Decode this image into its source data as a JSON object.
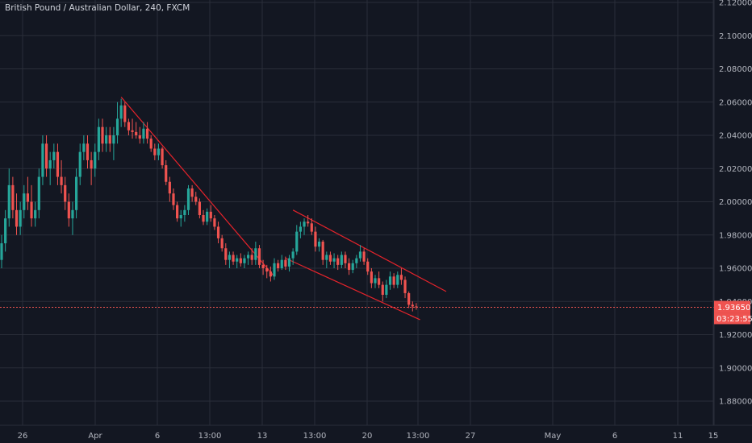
{
  "header": {
    "title": "British Pound / Australian Dollar, 240, FXCM"
  },
  "colors": {
    "background": "#131722",
    "grid": "#2a2e39",
    "up": "#26a69a",
    "down": "#ef5350",
    "trendline": "#e5232b",
    "text": "#b2b5be"
  },
  "chart_data": {
    "type": "candlestick",
    "title": "British Pound / Australian Dollar, 240, FXCM",
    "yaxis": {
      "ticks": [
        "1.88000",
        "1.90000",
        "1.92000",
        "1.94000",
        "1.96000",
        "1.98000",
        "2.00000",
        "2.02000",
        "2.04000",
        "2.06000",
        "2.08000",
        "2.10000",
        "2.12000"
      ],
      "ylim": [
        1.87,
        2.12
      ]
    },
    "xaxis": {
      "ticks": [
        "26",
        "Apr",
        "6",
        "13:00",
        "13",
        "13:00",
        "20",
        "13:00",
        "27",
        "May",
        "6",
        "11",
        "15"
      ]
    },
    "current_price": {
      "value": "1.93650",
      "countdown": "03:23:55",
      "y": 1.9365
    },
    "candles": [
      [
        1.965,
        1.98,
        1.96,
        1.975
      ],
      [
        1.975,
        1.995,
        1.97,
        1.99
      ],
      [
        1.99,
        2.02,
        1.985,
        2.01
      ],
      [
        2.01,
        2.015,
        1.99,
        1.995
      ],
      [
        1.995,
        2.005,
        1.98,
        1.985
      ],
      [
        1.985,
        2.0,
        1.98,
        1.995
      ],
      [
        1.995,
        2.01,
        1.99,
        2.005
      ],
      [
        2.005,
        2.015,
        1.995,
        2.0
      ],
      [
        2.0,
        2.01,
        1.985,
        1.99
      ],
      [
        1.99,
        2.0,
        1.985,
        1.995
      ],
      [
        1.995,
        2.02,
        1.99,
        2.015
      ],
      [
        2.015,
        2.04,
        2.01,
        2.035
      ],
      [
        2.035,
        2.04,
        2.015,
        2.02
      ],
      [
        2.02,
        2.03,
        2.01,
        2.025
      ],
      [
        2.025,
        2.035,
        2.02,
        2.03
      ],
      [
        2.03,
        2.035,
        2.01,
        2.015
      ],
      [
        2.015,
        2.025,
        2.005,
        2.01
      ],
      [
        2.01,
        2.015,
        1.995,
        2.0
      ],
      [
        2.0,
        2.005,
        1.985,
        1.99
      ],
      [
        1.99,
        2.0,
        1.98,
        1.995
      ],
      [
        1.995,
        2.02,
        1.99,
        2.015
      ],
      [
        2.015,
        2.035,
        2.01,
        2.03
      ],
      [
        2.03,
        2.04,
        2.025,
        2.035
      ],
      [
        2.035,
        2.04,
        2.02,
        2.025
      ],
      [
        2.025,
        2.03,
        2.01,
        2.02
      ],
      [
        2.02,
        2.035,
        2.015,
        2.03
      ],
      [
        2.03,
        2.05,
        2.025,
        2.045
      ],
      [
        2.045,
        2.05,
        2.03,
        2.035
      ],
      [
        2.035,
        2.045,
        2.03,
        2.04
      ],
      [
        2.04,
        2.045,
        2.03,
        2.035
      ],
      [
        2.035,
        2.045,
        2.025,
        2.04
      ],
      [
        2.04,
        2.06,
        2.035,
        2.05
      ],
      [
        2.05,
        2.062,
        2.045,
        2.058
      ],
      [
        2.058,
        2.06,
        2.045,
        2.048
      ],
      [
        2.048,
        2.05,
        2.04,
        2.043
      ],
      [
        2.043,
        2.05,
        2.038,
        2.042
      ],
      [
        2.042,
        2.048,
        2.038,
        2.04
      ],
      [
        2.04,
        2.045,
        2.035,
        2.038
      ],
      [
        2.038,
        2.048,
        2.035,
        2.044
      ],
      [
        2.044,
        2.048,
        2.035,
        2.038
      ],
      [
        2.038,
        2.04,
        2.03,
        2.032
      ],
      [
        2.032,
        2.035,
        2.025,
        2.028
      ],
      [
        2.028,
        2.035,
        2.025,
        2.032
      ],
      [
        2.032,
        2.033,
        2.02,
        2.022
      ],
      [
        2.022,
        2.025,
        2.01,
        2.012
      ],
      [
        2.012,
        2.015,
        2.0,
        2.005
      ],
      [
        2.005,
        2.008,
        1.995,
        1.998
      ],
      [
        1.998,
        2.0,
        1.988,
        1.99
      ],
      [
        1.99,
        1.995,
        1.985,
        1.992
      ],
      [
        1.992,
        1.998,
        1.988,
        1.995
      ],
      [
        1.995,
        2.01,
        1.992,
        2.008
      ],
      [
        2.008,
        2.01,
        2.0,
        2.003
      ],
      [
        2.003,
        2.006,
        1.998,
        2.0
      ],
      [
        2.0,
        2.002,
        1.99,
        1.992
      ],
      [
        1.992,
        1.995,
        1.986,
        1.988
      ],
      [
        1.988,
        1.996,
        1.986,
        1.994
      ],
      [
        1.994,
        1.998,
        1.988,
        1.99
      ],
      [
        1.99,
        1.992,
        1.983,
        1.985
      ],
      [
        1.985,
        1.988,
        1.975,
        1.978
      ],
      [
        1.978,
        1.98,
        1.97,
        1.972
      ],
      [
        1.972,
        1.975,
        1.962,
        1.965
      ],
      [
        1.965,
        1.97,
        1.96,
        1.968
      ],
      [
        1.968,
        1.97,
        1.962,
        1.964
      ],
      [
        1.964,
        1.968,
        1.96,
        1.966
      ],
      [
        1.966,
        1.969,
        1.961,
        1.963
      ],
      [
        1.963,
        1.968,
        1.96,
        1.966
      ],
      [
        1.966,
        1.97,
        1.962,
        1.968
      ],
      [
        1.968,
        1.972,
        1.962,
        1.965
      ],
      [
        1.965,
        1.976,
        1.962,
        1.972
      ],
      [
        1.972,
        1.974,
        1.96,
        1.962
      ],
      [
        1.962,
        1.965,
        1.956,
        1.96
      ],
      [
        1.96,
        1.962,
        1.954,
        1.958
      ],
      [
        1.958,
        1.961,
        1.952,
        1.955
      ],
      [
        1.955,
        1.966,
        1.953,
        1.963
      ],
      [
        1.963,
        1.965,
        1.958,
        1.96
      ],
      [
        1.96,
        1.968,
        1.959,
        1.965
      ],
      [
        1.965,
        1.967,
        1.959,
        1.961
      ],
      [
        1.961,
        1.968,
        1.958,
        1.966
      ],
      [
        1.966,
        1.972,
        1.962,
        1.97
      ],
      [
        1.97,
        1.986,
        1.968,
        1.982
      ],
      [
        1.982,
        1.988,
        1.978,
        1.985
      ],
      [
        1.985,
        1.99,
        1.98,
        1.988
      ],
      [
        1.988,
        1.992,
        1.985,
        1.987
      ],
      [
        1.987,
        1.99,
        1.98,
        1.982
      ],
      [
        1.982,
        1.985,
        1.97,
        1.973
      ],
      [
        1.973,
        1.978,
        1.97,
        1.976
      ],
      [
        1.976,
        1.977,
        1.962,
        1.965
      ],
      [
        1.965,
        1.97,
        1.96,
        1.968
      ],
      [
        1.968,
        1.97,
        1.962,
        1.964
      ],
      [
        1.964,
        1.969,
        1.96,
        1.966
      ],
      [
        1.966,
        1.968,
        1.959,
        1.962
      ],
      [
        1.962,
        1.97,
        1.96,
        1.968
      ],
      [
        1.968,
        1.97,
        1.96,
        1.963
      ],
      [
        1.963,
        1.966,
        1.956,
        1.959
      ],
      [
        1.959,
        1.965,
        1.957,
        1.963
      ],
      [
        1.963,
        1.968,
        1.96,
        1.966
      ],
      [
        1.966,
        1.974,
        1.964,
        1.97
      ],
      [
        1.97,
        1.972,
        1.962,
        1.964
      ],
      [
        1.964,
        1.966,
        1.956,
        1.958
      ],
      [
        1.958,
        1.96,
        1.948,
        1.951
      ],
      [
        1.951,
        1.956,
        1.948,
        1.954
      ],
      [
        1.954,
        1.958,
        1.948,
        1.95
      ],
      [
        1.95,
        1.952,
        1.94,
        1.944
      ],
      [
        1.944,
        1.953,
        1.942,
        1.95
      ],
      [
        1.95,
        1.958,
        1.947,
        1.955
      ],
      [
        1.955,
        1.957,
        1.948,
        1.95
      ],
      [
        1.95,
        1.958,
        1.948,
        1.956
      ],
      [
        1.956,
        1.96,
        1.95,
        1.953
      ],
      [
        1.953,
        1.955,
        1.942,
        1.945
      ],
      [
        1.945,
        1.946,
        1.936,
        1.938
      ],
      [
        1.938,
        1.94,
        1.934,
        1.937
      ],
      [
        1.937,
        1.939,
        1.935,
        1.9365
      ]
    ],
    "trendlines": [
      {
        "from": [
          32,
          2.063
        ],
        "to": [
          73,
          1.955
        ]
      },
      {
        "from": [
          78,
          1.995
        ],
        "to": [
          119,
          1.946
        ]
      },
      {
        "from": [
          76,
          1.966
        ],
        "to": [
          112,
          1.929
        ]
      }
    ]
  }
}
